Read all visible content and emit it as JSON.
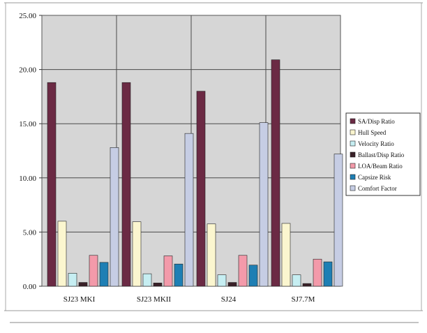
{
  "chart_data": {
    "type": "bar",
    "title": "",
    "xlabel": "",
    "ylabel": "",
    "categories": [
      "SJ23 MKI",
      "SJ23 MKII",
      "SJ24",
      "SJ7.7M"
    ],
    "ylim": [
      0,
      25
    ],
    "yticks": [
      "0.00",
      "5.00",
      "10.00",
      "15.00",
      "20.00",
      "25.00"
    ],
    "grid": true,
    "legend_position": "right",
    "series": [
      {
        "name": "SA/Disp Ratio",
        "color": "#6b2a44",
        "values": [
          18.8,
          18.8,
          18.0,
          20.9
        ]
      },
      {
        "name": "Hull Speed",
        "color": "#fbf6cf",
        "values": [
          6.0,
          5.95,
          5.75,
          5.8
        ]
      },
      {
        "name": "Velocity Ratio",
        "color": "#c6eef2",
        "values": [
          1.2,
          1.15,
          1.05,
          1.05
        ]
      },
      {
        "name": "Ballast/Disp Ratio",
        "color": "#3a2028",
        "values": [
          0.35,
          0.3,
          0.35,
          0.25
        ]
      },
      {
        "name": "LOA/Beam Ratio",
        "color": "#f39aaa",
        "values": [
          2.85,
          2.8,
          2.85,
          2.5
        ]
      },
      {
        "name": "Capsize Risk",
        "color": "#1e7fb4",
        "values": [
          2.2,
          2.05,
          1.95,
          2.25
        ]
      },
      {
        "name": "Comfort Factor",
        "color": "#c6cde4",
        "values": [
          12.8,
          14.1,
          15.1,
          12.2
        ]
      }
    ]
  }
}
